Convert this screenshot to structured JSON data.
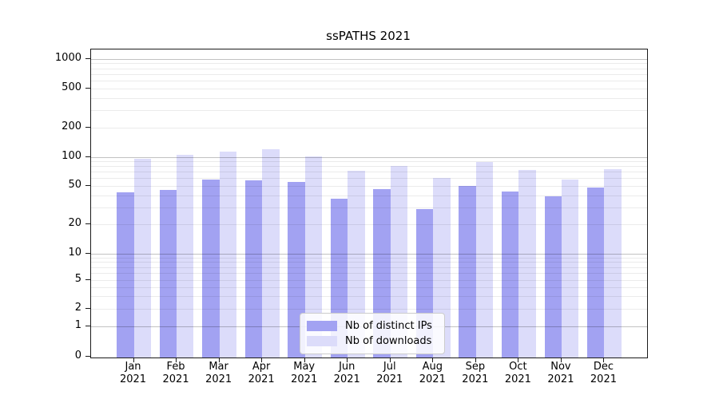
{
  "chart_data": {
    "type": "bar",
    "title": "ssPATHS 2021",
    "categories": [
      "Jan 2021",
      "Feb 2021",
      "Mar 2021",
      "Apr 2021",
      "May 2021",
      "Jun 2021",
      "Jul 2021",
      "Aug 2021",
      "Sep 2021",
      "Oct 2021",
      "Nov 2021",
      "Dec 2021"
    ],
    "series": [
      {
        "name": "Nb of distinct IPs",
        "color": "#a2a2f2",
        "values": [
          43,
          45,
          58,
          57,
          55,
          37,
          46,
          29,
          50,
          44,
          39,
          48
        ]
      },
      {
        "name": "Nb of downloads",
        "color": "#dcdcfa",
        "values": [
          96,
          104,
          112,
          119,
          101,
          72,
          80,
          60,
          88,
          73,
          58,
          75
        ]
      }
    ],
    "xlabel": "",
    "ylabel": "",
    "y_scale": "symlog",
    "y_ticks": [
      0,
      1,
      2,
      5,
      10,
      20,
      50,
      100,
      200,
      500,
      1000
    ],
    "ylim": [
      0,
      1250
    ],
    "grid": "major and minor horizontal gridlines",
    "legend_position": "lower center"
  }
}
